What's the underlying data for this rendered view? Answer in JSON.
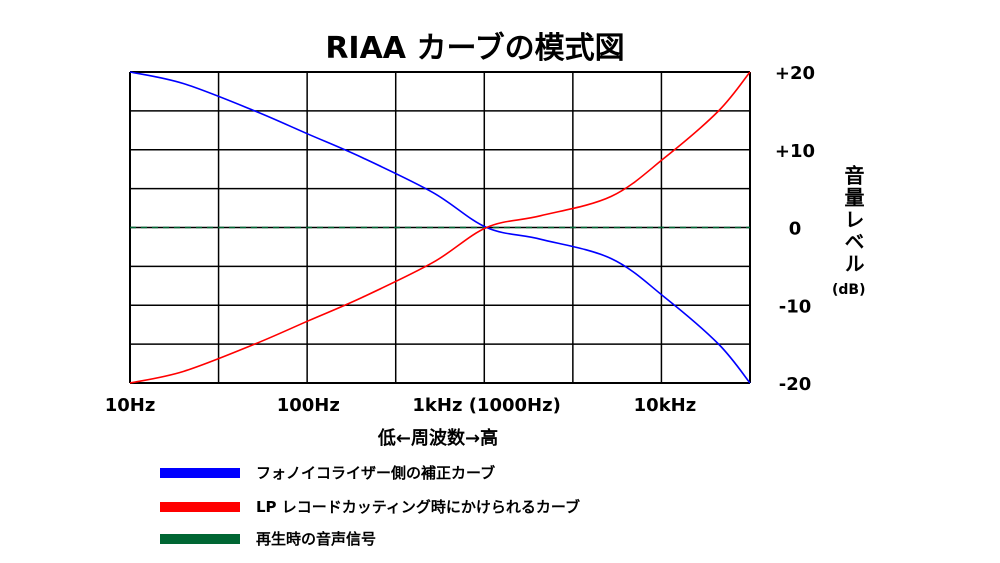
{
  "chart_data": {
    "type": "line",
    "title": "RIAA カーブの模式図",
    "xlabel": "低←周波数→高",
    "ylabel": "音量レベル",
    "yunit": "(dB)",
    "x_scale": "log",
    "xlim": [
      10,
      30000
    ],
    "ylim": [
      -20,
      20
    ],
    "x_ticks": [
      {
        "value": 10,
        "label": "10Hz"
      },
      {
        "value": 100,
        "label": "100Hz"
      },
      {
        "value": 1000,
        "label": "1kHz (1000Hz)"
      },
      {
        "value": 10000,
        "label": "10kHz"
      }
    ],
    "y_ticks": [
      {
        "value": 20,
        "label": "+20"
      },
      {
        "value": 10,
        "label": "+10"
      },
      {
        "value": 0,
        "label": "0"
      },
      {
        "value": -10,
        "label": "-10"
      },
      {
        "value": -20,
        "label": "-20"
      }
    ],
    "grid": true,
    "series": [
      {
        "name": "フォノイコライザー側の補正カーブ",
        "color": "#0000ff",
        "x": [
          10,
          20,
          50,
          100,
          200,
          500,
          1000,
          2000,
          5000,
          10000,
          20000,
          30000
        ],
        "y": [
          20,
          18.5,
          15,
          12,
          9,
          4.5,
          0,
          -1.5,
          -4,
          -9,
          -15,
          -20
        ]
      },
      {
        "name": "LP レコードカッティング時にかけられるカーブ",
        "color": "#ff0000",
        "x": [
          10,
          20,
          50,
          100,
          200,
          500,
          1000,
          2000,
          5000,
          10000,
          20000,
          30000
        ],
        "y": [
          -20,
          -18.5,
          -15,
          -12,
          -9,
          -4.5,
          0,
          1.5,
          4,
          9,
          15,
          20
        ]
      },
      {
        "name": "再生時の音声信号",
        "color": "#006633",
        "style": "dashed",
        "x": [
          10,
          30000
        ],
        "y": [
          0,
          0
        ]
      }
    ]
  }
}
